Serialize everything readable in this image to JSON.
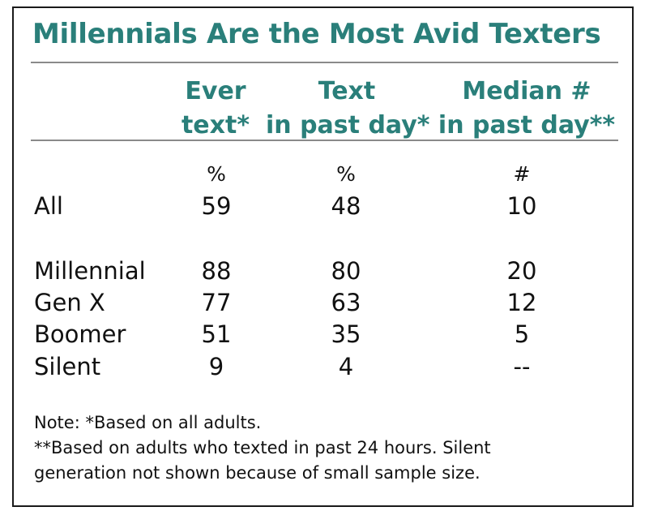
{
  "colors": {
    "accent": "#2a7f7a",
    "text": "#111111",
    "rule": "#8a8a8a",
    "border": "#1a1a1a"
  },
  "chart_data": {
    "type": "table",
    "title": "Millennials Are the Most Avid Texters",
    "columns": [
      {
        "line1": "Ever",
        "line2": "text*",
        "unit": "%"
      },
      {
        "line1": "Text",
        "line2": "in past day*",
        "unit": "%"
      },
      {
        "line1": "Median #",
        "line2": "in past day**",
        "unit": "#"
      }
    ],
    "rows": [
      {
        "label": "All",
        "values": [
          "59",
          "48",
          "10"
        ]
      },
      {
        "label": "Millennial",
        "values": [
          "88",
          "80",
          "20"
        ]
      },
      {
        "label": "Gen X",
        "values": [
          "77",
          "63",
          "12"
        ]
      },
      {
        "label": "Boomer",
        "values": [
          "51",
          "35",
          "5"
        ]
      },
      {
        "label": "Silent",
        "values": [
          "9",
          "4",
          "--"
        ]
      }
    ],
    "notes": [
      "Note: *Based on all adults.",
      "**Based on adults who texted in past 24 hours. Silent",
      "generation not shown because of small sample size."
    ]
  }
}
